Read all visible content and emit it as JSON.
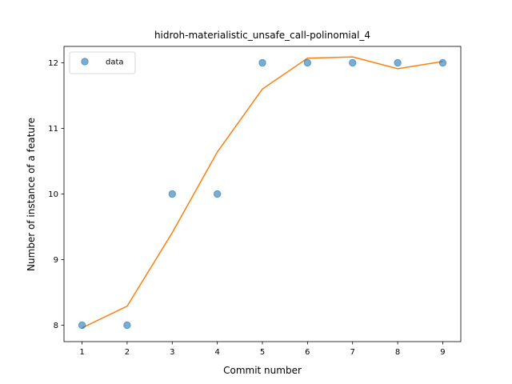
{
  "chart_data": {
    "type": "scatter",
    "title": "hidroh-materialistic_unsafe_call-polinomial_4",
    "xlabel": "Commit number",
    "ylabel": "Number of instance of a feature",
    "xlim": [
      0.6,
      9.4
    ],
    "ylim": [
      7.75,
      12.25
    ],
    "xticks": [
      1,
      2,
      3,
      4,
      5,
      6,
      7,
      8,
      9
    ],
    "yticks": [
      8,
      9,
      10,
      11,
      12
    ],
    "grid": false,
    "legend_position": "upper-left",
    "series": [
      {
        "name": "data",
        "kind": "scatter",
        "color": "#1f77b4",
        "x": [
          1,
          2,
          3,
          4,
          5,
          6,
          7,
          8,
          9
        ],
        "y": [
          8,
          8,
          10,
          10,
          12,
          12,
          12,
          12,
          12
        ]
      },
      {
        "kind": "line",
        "color": "#ff7f0e",
        "x": [
          1,
          2,
          3,
          4,
          5,
          6,
          7,
          8,
          9
        ],
        "y": [
          7.96,
          8.29,
          9.41,
          10.64,
          11.6,
          12.07,
          12.09,
          11.91,
          12.02
        ]
      }
    ]
  }
}
